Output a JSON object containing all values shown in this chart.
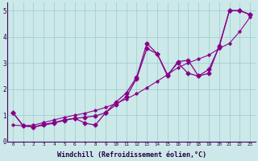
{
  "background_color": "#cce8e8",
  "grid_color": "#99cccc",
  "line_color": "#880088",
  "marker": "D",
  "markersize": 2.5,
  "linewidth": 0.9,
  "xlim": [
    -0.5,
    23.5
  ],
  "ylim": [
    0,
    5.3
  ],
  "xlabel": "Windchill (Refroidissement éolien,°C)",
  "xlabel_fontsize": 6.0,
  "xtick_labels": [
    "0",
    "1",
    "2",
    "3",
    "4",
    "5",
    "6",
    "7",
    "8",
    "9",
    "10",
    "11",
    "12",
    "13",
    "14",
    "15",
    "16",
    "17",
    "18",
    "19",
    "20",
    "21",
    "22",
    "23"
  ],
  "ytick_vals": [
    0,
    1,
    2,
    3,
    4,
    5
  ],
  "series1_x": [
    0,
    1,
    2,
    3,
    4,
    5,
    6,
    7,
    8,
    9,
    10,
    11,
    12,
    13,
    14,
    15,
    16,
    17,
    18,
    19,
    20,
    21,
    22,
    23
  ],
  "series1_y": [
    1.1,
    0.6,
    0.55,
    0.65,
    0.72,
    0.82,
    0.88,
    0.92,
    0.97,
    1.1,
    1.5,
    1.85,
    2.45,
    3.75,
    3.35,
    2.5,
    3.05,
    3.1,
    2.5,
    2.6,
    3.65,
    5.0,
    5.0,
    4.85
  ],
  "series2_x": [
    0,
    1,
    2,
    3,
    4,
    5,
    6,
    7,
    8,
    9,
    10,
    11,
    12,
    13,
    14,
    15,
    16,
    17,
    18,
    19,
    20,
    21,
    22,
    23
  ],
  "series2_y": [
    1.1,
    0.6,
    0.55,
    0.62,
    0.7,
    0.8,
    0.88,
    0.7,
    0.62,
    1.1,
    1.4,
    1.7,
    2.4,
    3.55,
    3.35,
    2.55,
    3.0,
    2.6,
    2.5,
    2.75,
    3.6,
    5.0,
    5.0,
    4.85
  ],
  "series3_x": [
    0,
    1,
    2,
    3,
    4,
    5,
    6,
    7,
    8,
    9,
    10,
    11,
    12,
    13,
    14,
    15,
    16,
    17,
    18,
    19,
    20,
    21,
    22,
    23
  ],
  "series3_y": [
    0.62,
    0.6,
    0.62,
    0.72,
    0.82,
    0.92,
    1.0,
    1.08,
    1.18,
    1.3,
    1.45,
    1.62,
    1.82,
    2.05,
    2.3,
    2.55,
    2.82,
    3.0,
    3.15,
    3.3,
    3.55,
    3.75,
    4.2,
    4.75
  ]
}
